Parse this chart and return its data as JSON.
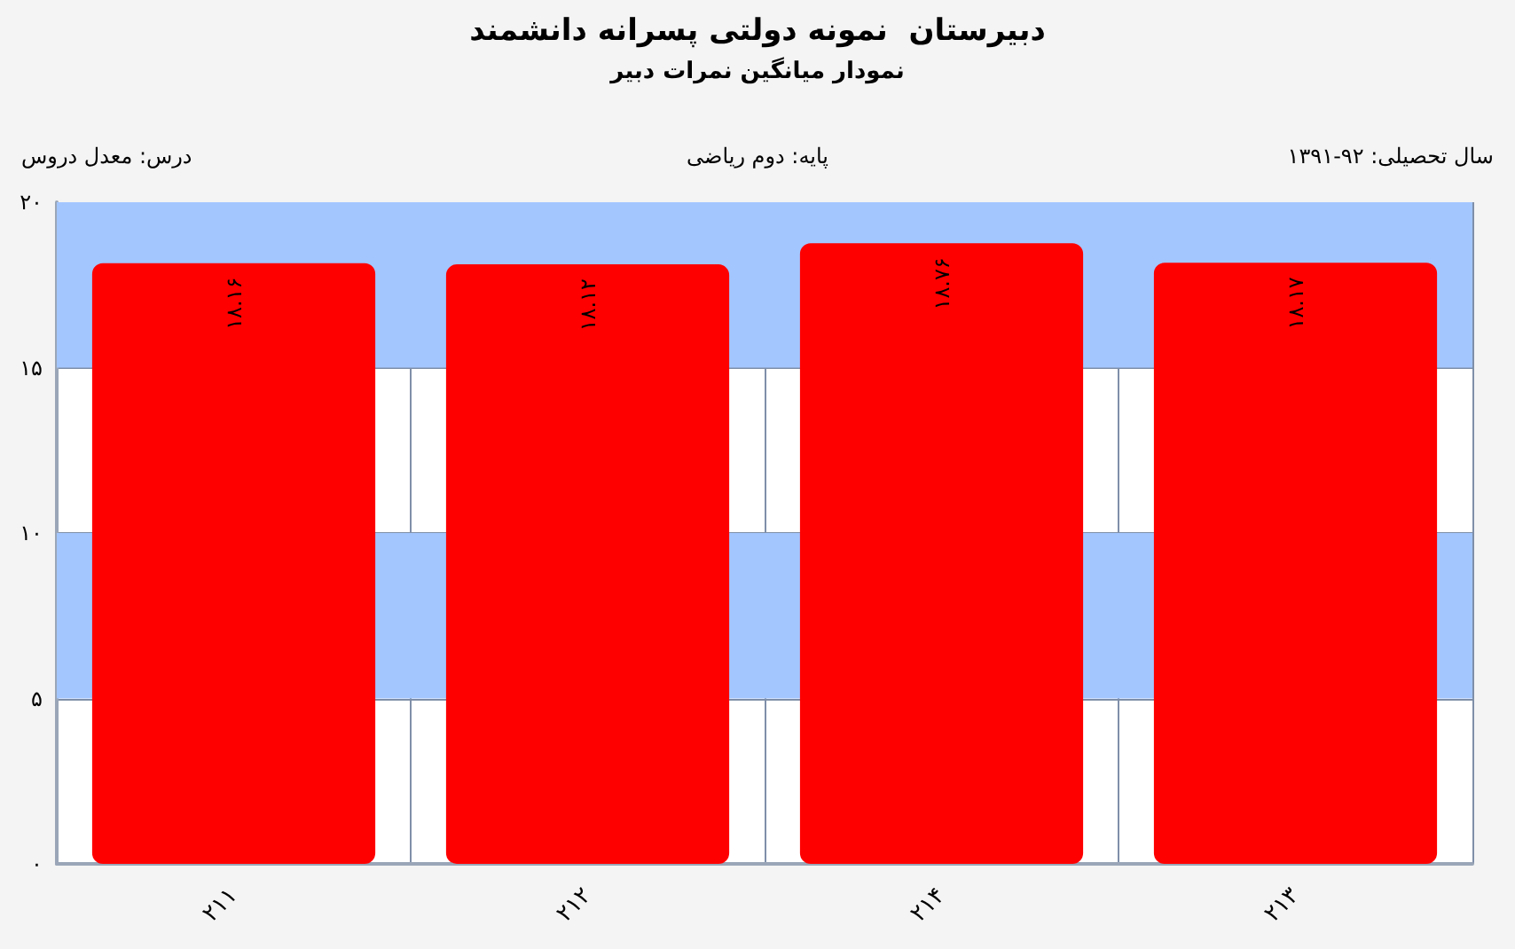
{
  "chart_data": {
    "type": "bar",
    "title": "دبیرستان  نمونه دولتی پسرانه دانشمند",
    "subtitle": "نمودار میانگین نمرات دبیر",
    "annotations": [
      "درس: معدل دروس",
      "پایه: دوم ریاضی",
      "سال تحصیلی: ۹۲-۱۳۹۱"
    ],
    "categories": [
      "۲۱۱",
      "۲۱۲",
      "۲۱۴",
      "۲۱۳"
    ],
    "values": [
      18.16,
      18.12,
      18.76,
      18.17
    ],
    "color": "#ff0000",
    "value_labels": [
      "۱۸.۱۶",
      "۱۸.۱۲",
      "۱۸.۷۶",
      "۱۸.۱۷"
    ],
    "ylim": [
      0,
      20
    ],
    "yticks": [
      {
        "value": 0,
        "label": "۰"
      },
      {
        "value": 5,
        "label": "۵"
      },
      {
        "value": 10,
        "label": "۱۰"
      },
      {
        "value": 15,
        "label": "۱۵"
      },
      {
        "value": 20,
        "label": "۲۰"
      }
    ],
    "bands": [
      {
        "axis": "y",
        "from": 5,
        "to": 10,
        "color": "#a3c6ff"
      },
      {
        "axis": "y",
        "from": 15,
        "to": 20,
        "color": "#a3c6ff"
      }
    ],
    "grid": true
  }
}
